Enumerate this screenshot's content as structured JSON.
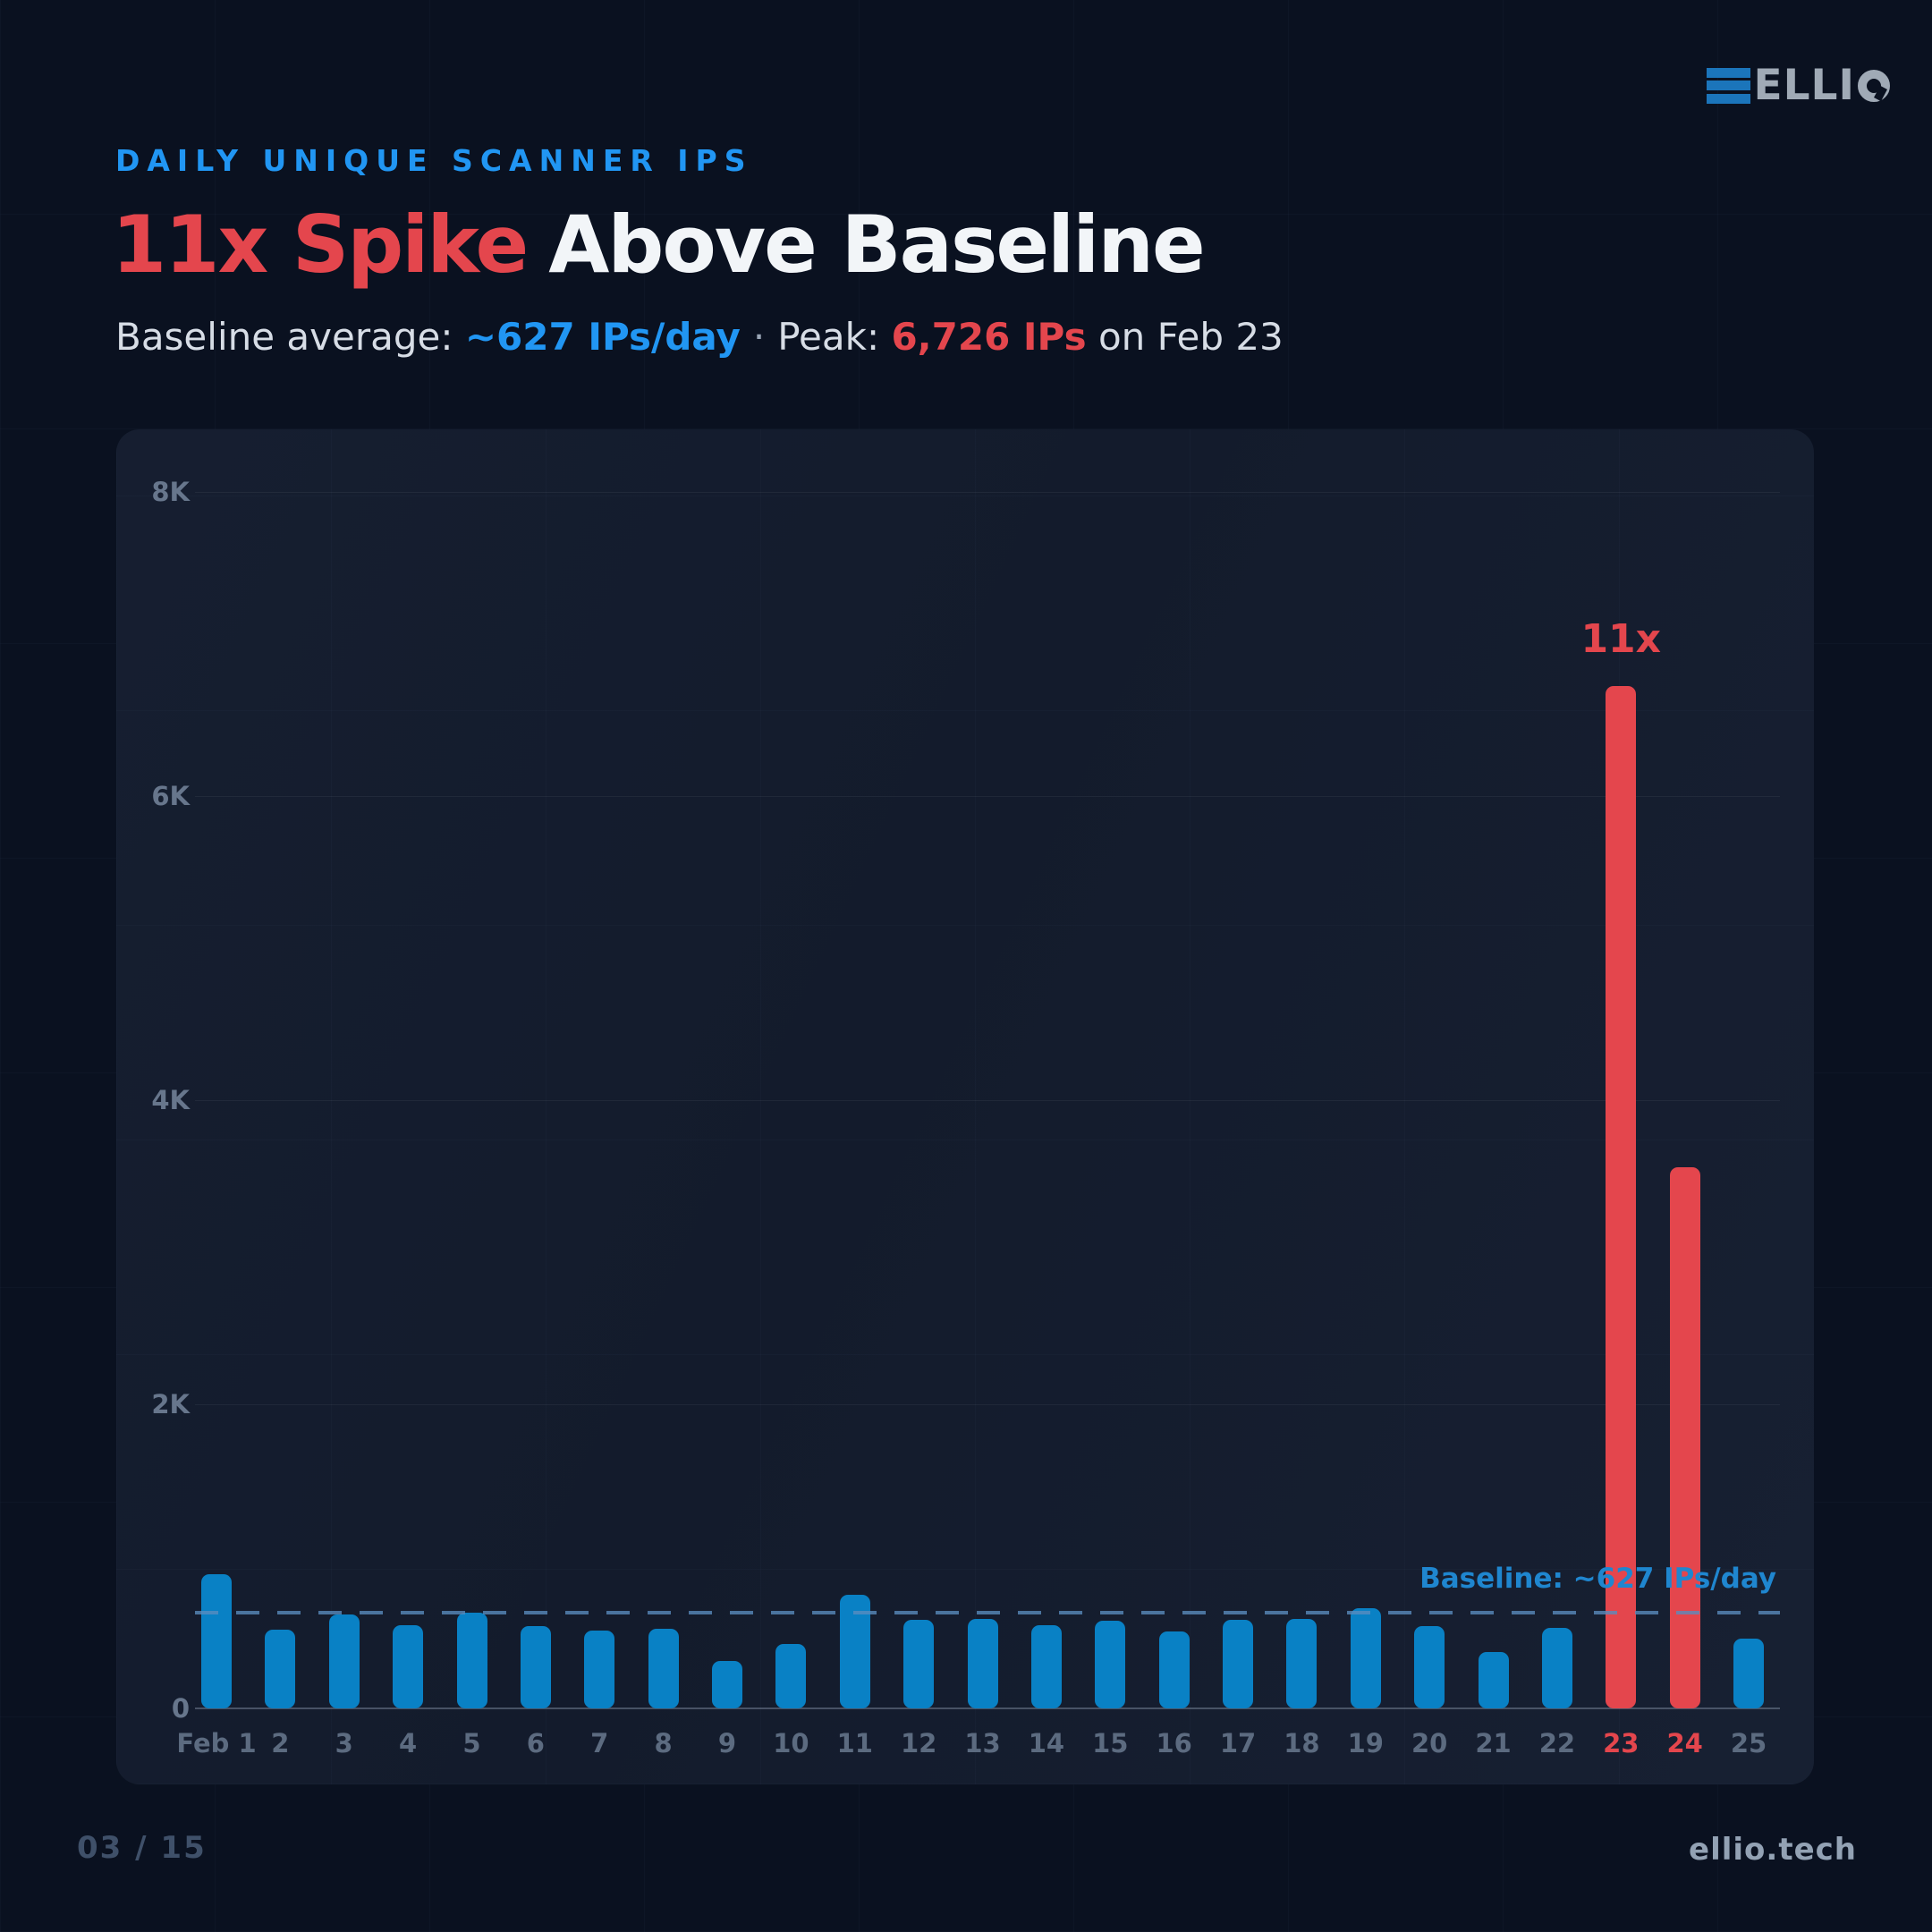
{
  "brand": {
    "logo_text": "ELLIO",
    "footer_site": "ellio.tech",
    "page_indicator": "03 / 15"
  },
  "header": {
    "eyebrow": "DAILY UNIQUE SCANNER IPS",
    "title_accent": "11x Spike",
    "title_rest": "Above Baseline",
    "subtitle_prefix": "Baseline average: ",
    "subtitle_baseline_value": "~627 IPs/day",
    "subtitle_separator": "·",
    "subtitle_peak_label": "Peak: ",
    "subtitle_peak_value": "6,726 IPs",
    "subtitle_suffix": " on Feb 23"
  },
  "chart_data": {
    "type": "bar",
    "title": "Daily Unique Scanner IPs",
    "xlabel": "",
    "ylabel": "",
    "categories": [
      "Feb 1",
      "2",
      "3",
      "4",
      "5",
      "6",
      "7",
      "8",
      "9",
      "10",
      "11",
      "12",
      "13",
      "14",
      "15",
      "16",
      "17",
      "18",
      "19",
      "20",
      "21",
      "22",
      "23",
      "24",
      "25"
    ],
    "values": [
      880,
      520,
      620,
      550,
      630,
      540,
      510,
      525,
      310,
      425,
      750,
      580,
      590,
      545,
      575,
      505,
      580,
      590,
      660,
      540,
      370,
      530,
      6726,
      3560,
      460
    ],
    "highlight_indices": [
      22,
      23
    ],
    "yticks": [
      {
        "label": "0",
        "value": 0
      },
      {
        "label": "2K",
        "value": 2000
      },
      {
        "label": "4K",
        "value": 4000
      },
      {
        "label": "6K",
        "value": 6000
      },
      {
        "label": "8K",
        "value": 8000
      }
    ],
    "ylim": [
      0,
      8000
    ],
    "grid": true,
    "legend": null,
    "baseline": {
      "value": 627,
      "label": "Baseline: ~627 IPs/day"
    },
    "annotation": {
      "text": "11x",
      "index": 22
    },
    "colors": {
      "bar": "#0981c5",
      "highlight": "#e4464d",
      "baseline_line": "#5a8cbe",
      "baseline_label": "#1f86cf",
      "accent_blue": "#2196f3",
      "accent_red": "#e4464d",
      "background": "#0a1120",
      "panel": "#131b2c"
    }
  }
}
